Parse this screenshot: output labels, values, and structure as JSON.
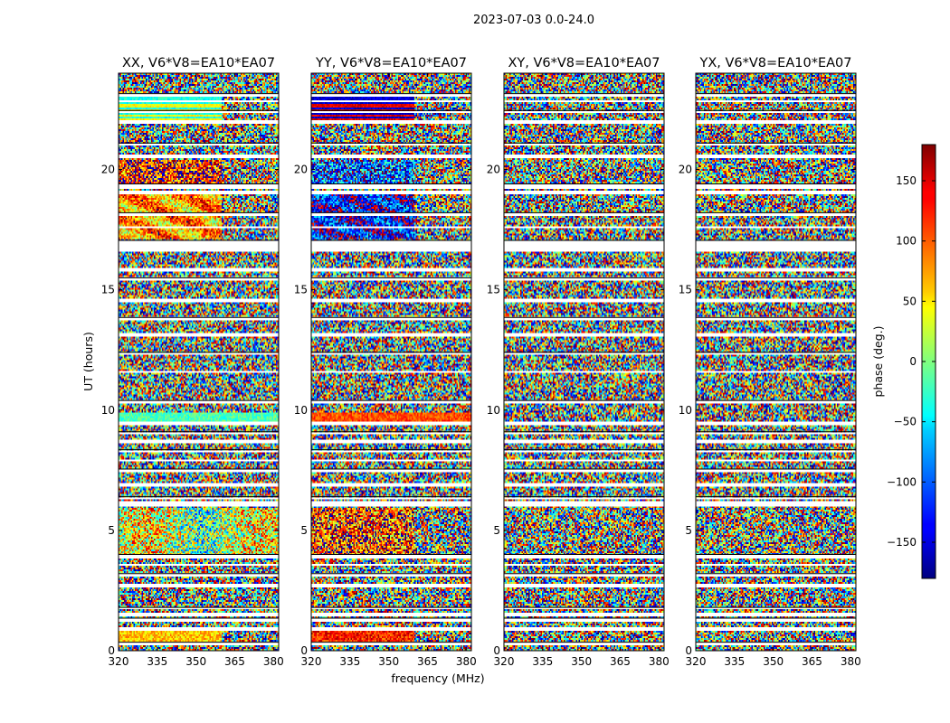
{
  "chart_data": {
    "type": "heatmap",
    "title": "2023-07-03 0.0-24.0",
    "xlabel": "frequency (MHz)",
    "ylabel": "UT (hours)",
    "xlim": [
      320,
      382
    ],
    "ylim": [
      0,
      24
    ],
    "xticks": [
      "320",
      "335",
      "350",
      "365",
      "380"
    ],
    "yticks": [
      "0",
      "5",
      "10",
      "15",
      "20"
    ],
    "panels": [
      {
        "title": "XX, V6*V8=EA10*EA07",
        "polarization": "XX"
      },
      {
        "title": "YY, V6*V8=EA10*EA07",
        "polarization": "YY"
      },
      {
        "title": "XY, V6*V8=EA10*EA07",
        "polarization": "XY"
      },
      {
        "title": "YX, V6*V8=EA10*EA07",
        "polarization": "YX"
      }
    ],
    "colorbar": {
      "label": "phase (deg.)",
      "range": [
        -180,
        180
      ],
      "ticks": [
        "150",
        "100",
        "50",
        "0",
        "−50",
        "−100",
        "−150"
      ],
      "colormap": "jet"
    },
    "flagged_bands_ut": [
      [
        0.2,
        0.35
      ],
      [
        0.85,
        0.95
      ],
      [
        1.2,
        1.35
      ],
      [
        1.45,
        1.55
      ],
      [
        1.7,
        1.8
      ],
      [
        2.6,
        2.75
      ],
      [
        3.05,
        3.2
      ],
      [
        3.5,
        3.6
      ],
      [
        3.85,
        4.0
      ],
      [
        6.0,
        6.2
      ],
      [
        6.3,
        6.4
      ],
      [
        6.85,
        7.0
      ],
      [
        7.4,
        7.55
      ],
      [
        7.85,
        7.95
      ],
      [
        8.25,
        8.35
      ],
      [
        8.6,
        8.75
      ],
      [
        9.0,
        9.1
      ],
      [
        9.35,
        9.5
      ],
      [
        10.25,
        10.4
      ],
      [
        11.55,
        11.65
      ],
      [
        12.3,
        12.4
      ],
      [
        13.05,
        13.2
      ],
      [
        13.7,
        13.85
      ],
      [
        14.45,
        14.6
      ],
      [
        15.35,
        15.5
      ],
      [
        15.75,
        15.9
      ],
      [
        16.55,
        17.05
      ],
      [
        17.55,
        17.65
      ],
      [
        18.1,
        18.2
      ],
      [
        18.95,
        19.1
      ],
      [
        19.2,
        19.4
      ],
      [
        20.45,
        20.6
      ],
      [
        21.0,
        21.1
      ],
      [
        21.9,
        22.05
      ],
      [
        22.35,
        22.45
      ],
      [
        22.8,
        22.9
      ],
      [
        23.05,
        23.15
      ]
    ]
  }
}
